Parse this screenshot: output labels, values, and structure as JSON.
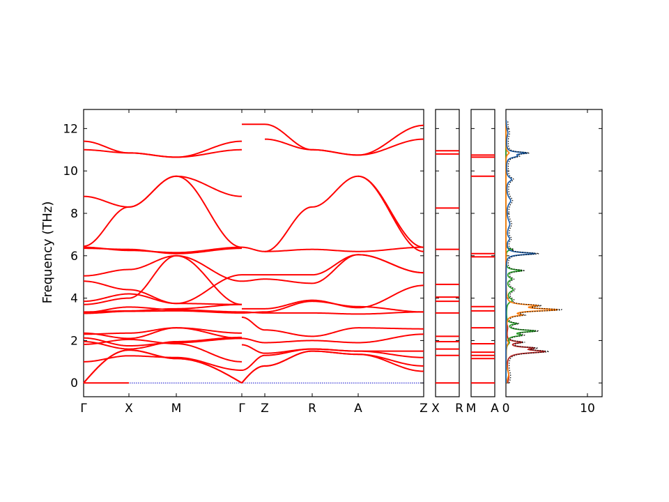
{
  "chart_data": [
    {
      "type": "line",
      "panel": "band-structure-main",
      "ylabel": "Frequency (THz)",
      "ylim": [
        -0.65,
        12.9
      ],
      "x_ticks": [
        "Γ",
        "X",
        "M",
        "Γ",
        "Z",
        "R",
        "A",
        "Z"
      ],
      "y_ticks": [
        0,
        2,
        4,
        6,
        8,
        10,
        12
      ],
      "series_color": "#ff0000",
      "zero_line_color": "#0000cc",
      "segments": [
        {
          "from": "Γ",
          "to": "X",
          "bands": [
            [
              0,
              0
            ],
            [
              0,
              1.55
            ],
            [
              0,
              1.55
            ],
            [
              1.0,
              1.28
            ],
            [
              1.82,
              2.05
            ],
            [
              1.95,
              1.6
            ],
            [
              2.12,
              1.75
            ],
            [
              2.3,
              2.35
            ],
            [
              2.35,
              2.1
            ],
            [
              3.28,
              3.38
            ],
            [
              3.32,
              3.58
            ],
            [
              3.35,
              3.4
            ],
            [
              3.7,
              4.0
            ],
            [
              3.85,
              4.2
            ],
            [
              4.8,
              4.4
            ],
            [
              5.05,
              5.35
            ],
            [
              6.35,
              6.3
            ],
            [
              6.4,
              6.25
            ],
            [
              6.45,
              8.3
            ],
            [
              8.8,
              8.3
            ],
            [
              11.0,
              10.85
            ],
            [
              11.4,
              10.85
            ]
          ]
        },
        {
          "from": "X",
          "to": "M",
          "bands": [
            [
              1.55,
              1.15
            ],
            [
              1.55,
              1.15
            ],
            [
              1.28,
              1.2
            ],
            [
              2.05,
              1.85
            ],
            [
              1.6,
              1.95
            ],
            [
              1.75,
              1.9
            ],
            [
              2.35,
              2.6
            ],
            [
              2.1,
              2.6
            ],
            [
              3.38,
              3.4
            ],
            [
              3.58,
              3.45
            ],
            [
              3.4,
              3.5
            ],
            [
              4.0,
              6.0
            ],
            [
              4.2,
              3.75
            ],
            [
              4.4,
              3.75
            ],
            [
              5.35,
              6.0
            ],
            [
              6.3,
              6.1
            ],
            [
              6.25,
              6.15
            ],
            [
              8.3,
              9.75
            ],
            [
              8.3,
              9.75
            ],
            [
              10.85,
              10.65
            ],
            [
              10.85,
              10.65
            ]
          ]
        },
        {
          "from": "M",
          "to": "Γ",
          "bands": [
            [
              1.15,
              0
            ],
            [
              1.15,
              0
            ],
            [
              1.2,
              0.6
            ],
            [
              1.85,
              1.0
            ],
            [
              1.95,
              2.15
            ],
            [
              1.9,
              2.1
            ],
            [
              2.6,
              2.35
            ],
            [
              2.6,
              2.1
            ],
            [
              3.4,
              3.3
            ],
            [
              3.45,
              3.35
            ],
            [
              3.5,
              3.7
            ],
            [
              6.0,
              4.8
            ],
            [
              3.75,
              5.1
            ],
            [
              3.75,
              3.7
            ],
            [
              6.0,
              3.7
            ],
            [
              6.1,
              6.35
            ],
            [
              6.15,
              6.4
            ],
            [
              9.75,
              6.4
            ],
            [
              9.75,
              8.8
            ],
            [
              10.65,
              11.0
            ],
            [
              10.65,
              11.4
            ]
          ]
        },
        {
          "from": "Γ",
          "to": "Z",
          "bands": [
            [
              0,
              0.8
            ],
            [
              0,
              0.8
            ],
            [
              0.6,
              1.3
            ],
            [
              1.8,
              1.4
            ],
            [
              2.1,
              1.9
            ],
            [
              3.1,
              2.5
            ],
            [
              3.3,
              3.35
            ],
            [
              3.35,
              3.3
            ],
            [
              3.5,
              3.5
            ],
            [
              4.8,
              4.9
            ],
            [
              5.1,
              5.1
            ],
            [
              6.4,
              6.2
            ],
            [
              12.2,
              12.2
            ]
          ]
        },
        {
          "from": "Z",
          "to": "R",
          "bands": [
            [
              0.8,
              1.5
            ],
            [
              0.8,
              1.5
            ],
            [
              1.3,
              1.6
            ],
            [
              1.4,
              1.6
            ],
            [
              1.9,
              2.0
            ],
            [
              2.5,
              2.2
            ],
            [
              3.35,
              3.85
            ],
            [
              3.3,
              3.3
            ],
            [
              3.5,
              3.9
            ],
            [
              4.9,
              4.7
            ],
            [
              5.1,
              5.1
            ],
            [
              6.2,
              8.3
            ],
            [
              6.2,
              6.3
            ],
            [
              11.5,
              11.0
            ],
            [
              12.2,
              11.0
            ]
          ]
        },
        {
          "from": "R",
          "to": "A",
          "bands": [
            [
              1.5,
              1.35
            ],
            [
              1.5,
              1.35
            ],
            [
              1.6,
              1.5
            ],
            [
              1.6,
              1.5
            ],
            [
              2.0,
              1.9
            ],
            [
              2.2,
              2.6
            ],
            [
              3.85,
              3.6
            ],
            [
              3.3,
              3.25
            ],
            [
              3.9,
              3.55
            ],
            [
              4.7,
              6.05
            ],
            [
              5.1,
              6.05
            ],
            [
              8.3,
              9.75
            ],
            [
              6.3,
              6.2
            ],
            [
              11.0,
              10.75
            ],
            [
              11.0,
              10.75
            ]
          ]
        },
        {
          "from": "A",
          "to": "Z",
          "bands": [
            [
              1.35,
              0.55
            ],
            [
              1.35,
              0.8
            ],
            [
              1.5,
              1.2
            ],
            [
              1.5,
              1.5
            ],
            [
              1.9,
              2.3
            ],
            [
              2.6,
              2.55
            ],
            [
              3.6,
              3.35
            ],
            [
              3.25,
              3.35
            ],
            [
              3.55,
              4.6
            ],
            [
              6.05,
              5.2
            ],
            [
              6.05,
              5.2
            ],
            [
              9.75,
              6.2
            ],
            [
              9.75,
              6.4
            ],
            [
              6.2,
              6.4
            ],
            [
              10.75,
              11.5
            ],
            [
              10.75,
              12.15
            ]
          ]
        }
      ]
    },
    {
      "type": "line",
      "panel": "band-structure-X-R",
      "x_ticks": [
        "X",
        "R"
      ],
      "ylim": [
        -0.65,
        12.9
      ],
      "bands": [
        0,
        1.3,
        1.6,
        1.95,
        2.2,
        3.3,
        3.85,
        4.05,
        4.65,
        6.3,
        8.25,
        10.8,
        10.95
      ]
    },
    {
      "type": "line",
      "panel": "band-structure-M-A",
      "x_ticks": [
        "M",
        "A"
      ],
      "ylim": [
        -0.65,
        12.9
      ],
      "bands": [
        0,
        1.15,
        1.3,
        1.45,
        1.85,
        2.6,
        3.4,
        3.6,
        5.95,
        6.1,
        9.75,
        10.65,
        10.75
      ]
    },
    {
      "type": "line",
      "panel": "density-of-states",
      "x_ticks": [
        "0",
        "10"
      ],
      "xlim": [
        0,
        11.8
      ],
      "ylim": [
        -0.65,
        12.9
      ],
      "series": [
        {
          "color": "#b22222",
          "peaks": [
            [
              1.48,
              8.3,
              0.08
            ],
            [
              1.65,
              4.8,
              0.05
            ],
            [
              1.92,
              3.2,
              0.05
            ],
            [
              0.3,
              0.6,
              0.35
            ],
            [
              2.6,
              0.3,
              0.2
            ]
          ]
        },
        {
          "color": "#2ca02c",
          "peaks": [
            [
              2.45,
              6.4,
              0.06
            ],
            [
              2.25,
              3.0,
              0.06
            ],
            [
              2.8,
              2.2,
              0.05
            ],
            [
              5.3,
              3.6,
              0.05
            ],
            [
              4.9,
              1.2,
              0.08
            ],
            [
              4.4,
              1.5,
              0.12
            ],
            [
              3.9,
              1.3,
              0.12
            ],
            [
              6.3,
              1.3,
              0.05
            ],
            [
              1.9,
              0.6,
              0.1
            ]
          ]
        },
        {
          "color": "#ff7f0e",
          "peaks": [
            [
              3.45,
              11.0,
              0.07
            ],
            [
              3.65,
              6.0,
              0.06
            ],
            [
              3.2,
              2.8,
              0.05
            ],
            [
              0.4,
              0.6,
              0.25
            ],
            [
              10.85,
              0.7,
              0.08
            ],
            [
              1.9,
              0.5,
              0.1
            ]
          ]
        },
        {
          "color": "#1f5fa8",
          "peaks": [
            [
              6.1,
              6.6,
              0.06
            ],
            [
              10.85,
              4.2,
              0.05
            ],
            [
              10.7,
              2.2,
              0.08
            ],
            [
              9.6,
              1.2,
              0.12
            ],
            [
              8.6,
              1.0,
              0.2
            ],
            [
              7.5,
              0.8,
              0.25
            ],
            [
              6.8,
              0.7,
              0.12
            ],
            [
              11.8,
              0.4,
              0.2
            ]
          ]
        }
      ],
      "total_style": "dotted",
      "total_color": "#000000"
    }
  ]
}
